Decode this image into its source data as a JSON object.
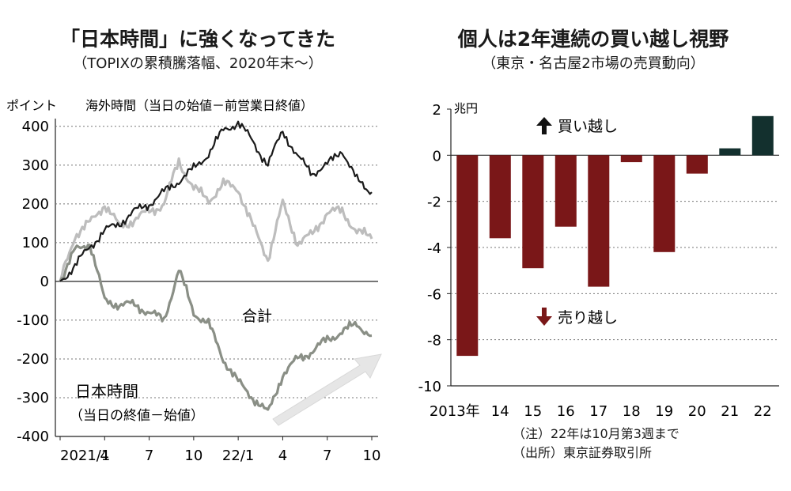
{
  "left_chart": {
    "title": "「日本時間」に強くなってきた",
    "subtitle": "（TOPIXの累積騰落幅、2020年末～）",
    "unit_label": "ポイント",
    "series_label_top": "海外時間（当日の始値－前営業日終値）",
    "series_label_total": "合計",
    "series_label_japan": "日本時間",
    "series_label_japan_note": "（当日の終値－始値）",
    "colors": {
      "overseas": "#bdbdbd",
      "total": "#1a1a1a",
      "japan": "#8a8f86",
      "arrow": "#e6e6e6"
    }
  },
  "right_chart": {
    "title": "個人は2年連続の買い越し視野",
    "subtitle": "（東京・名古屋2市場の売買動向）",
    "unit_label": "兆円",
    "buy_label": "買い越し",
    "sell_label": "売り越し",
    "note1": "（注）22年は10月第3週まで",
    "note2": "（出所）東京証券取引所",
    "colors": {
      "negative": "#7a1718",
      "positive": "#13302e"
    }
  },
  "chart_data": [
    {
      "type": "line",
      "x_ticks": [
        "2021/1",
        "4",
        "7",
        "10",
        "22/1",
        "4",
        "7",
        "10"
      ],
      "y_ticks": [
        "400",
        "300",
        "200",
        "100",
        "0",
        "-100",
        "-200",
        "-300",
        "-400"
      ],
      "ylim": [
        -400,
        420
      ],
      "x": [
        "2021/1",
        "2021/2",
        "2021/3",
        "2021/4",
        "2021/5",
        "2021/6",
        "2021/7",
        "2021/8",
        "2021/9",
        "2021/10",
        "2021/11",
        "2021/12",
        "2022/1",
        "2022/2",
        "2022/3",
        "2022/4",
        "2022/5",
        "2022/6",
        "2022/7",
        "2022/8",
        "2022/9",
        "2022/10"
      ],
      "series": [
        {
          "name": "合計",
          "values": [
            0,
            40,
            90,
            130,
            150,
            180,
            200,
            230,
            260,
            290,
            330,
            390,
            410,
            360,
            300,
            390,
            320,
            280,
            300,
            340,
            260,
            230
          ]
        },
        {
          "name": "海外時間（当日の始値－前営業日終値）",
          "values": [
            0,
            120,
            150,
            200,
            140,
            160,
            180,
            200,
            310,
            240,
            210,
            250,
            240,
            140,
            60,
            200,
            100,
            120,
            180,
            180,
            130,
            110
          ]
        },
        {
          "name": "日本時間（当日の終値－始値）",
          "values": [
            0,
            80,
            100,
            -50,
            -60,
            -60,
            -80,
            -100,
            30,
            -80,
            -110,
            -200,
            -260,
            -300,
            -340,
            -240,
            -200,
            -180,
            -150,
            -130,
            -110,
            -140
          ]
        }
      ]
    },
    {
      "type": "bar",
      "categories": [
        "2013年",
        "14",
        "15",
        "16",
        "17",
        "18",
        "19",
        "20",
        "21",
        "22"
      ],
      "values": [
        -8.7,
        -3.6,
        -4.9,
        -3.1,
        -5.7,
        -0.3,
        -4.2,
        -0.8,
        0.3,
        1.7
      ],
      "y_ticks": [
        "2",
        "0",
        "-2",
        "-4",
        "-6",
        "-8",
        "-10"
      ],
      "ylim": [
        -10,
        2
      ]
    }
  ]
}
